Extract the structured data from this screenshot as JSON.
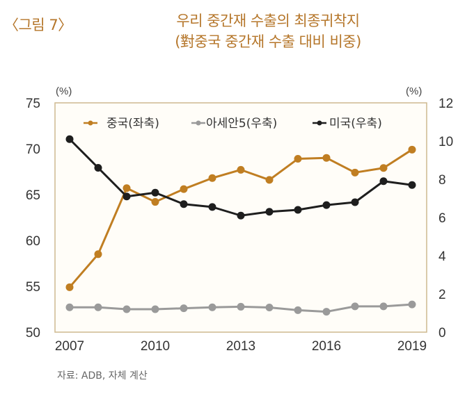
{
  "figure_label": "〈그림 7〉",
  "title_line1": "우리 중간재 수출의 최종귀착지",
  "title_line2": "(對중국 중간재 수출 대비 비중)",
  "source": "자료: ADB, 자체 계산",
  "colors": {
    "title": "#b5762a",
    "china": "#c07e22",
    "asean5": "#9a9a9a",
    "usa": "#1e1e1e",
    "frame": "#cdb98f",
    "plot_bg": "#fffdf8"
  },
  "chart_data": {
    "type": "line",
    "title": "우리 중간재 수출의 최종귀착지 (對중국 중간재 수출 대비 비중)",
    "x": [
      2007,
      2008,
      2009,
      2010,
      2011,
      2012,
      2013,
      2014,
      2015,
      2016,
      2017,
      2018,
      2019
    ],
    "x_tick_labels": [
      "2007",
      "2010",
      "2013",
      "2016",
      "2019"
    ],
    "left_axis": {
      "unit_label": "(%)",
      "ylim": [
        50,
        75
      ],
      "ticks": [
        "75",
        "70",
        "65",
        "60",
        "55",
        "50"
      ]
    },
    "right_axis": {
      "unit_label": "(%)",
      "ylim": [
        0,
        12
      ],
      "ticks": [
        "12",
        "10",
        "8",
        "6",
        "4",
        "2",
        "0"
      ]
    },
    "series": [
      {
        "name": "중국(좌축)",
        "axis": "left",
        "color": "#c07e22",
        "values": [
          54.9,
          58.5,
          65.7,
          64.2,
          65.6,
          66.8,
          67.7,
          66.6,
          68.9,
          69.0,
          67.4,
          67.9,
          69.9
        ]
      },
      {
        "name": "아세안5(우축)",
        "axis": "right",
        "color": "#9a9a9a",
        "values": [
          1.3,
          1.3,
          1.2,
          1.2,
          1.25,
          1.3,
          1.33,
          1.29,
          1.15,
          1.07,
          1.35,
          1.35,
          1.45
        ]
      },
      {
        "name": "미국(우축)",
        "axis": "right",
        "color": "#1e1e1e",
        "values": [
          10.1,
          8.6,
          7.1,
          7.3,
          6.7,
          6.55,
          6.1,
          6.3,
          6.4,
          6.65,
          6.8,
          7.9,
          7.7
        ]
      }
    ],
    "legend": [
      "중국(좌축)",
      "아세안5(우축)",
      "미국(우축)"
    ],
    "legend_position": "top",
    "grid": false
  }
}
